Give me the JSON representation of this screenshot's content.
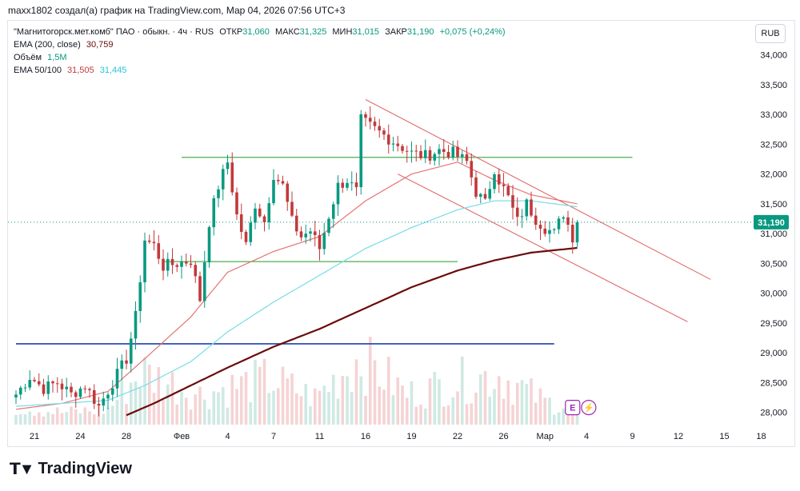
{
  "header": "maxx1802 создал(а) график на TradingView.com, Мар 04, 2026 07:56 UTC+3",
  "legend": {
    "symbol": "\"Магнитогорск.мет.комб\" ПАО · обыкн. · 4ч · RUS",
    "open_label": "ОТКР",
    "open": "31,060",
    "high_label": "МАКС",
    "high": "31,325",
    "low_label": "МИН",
    "low": "31,015",
    "close_label": "ЗАКР",
    "close": "31,190",
    "change": "+0,075 (+0,24%)",
    "ema200_label": "EMA (200, close)",
    "ema200_value": "30,759",
    "volume_label": "Объём",
    "volume_value": "1,5M",
    "ema50100_label": "EMA 50/100",
    "ema50_value": "31,505",
    "ema100_value": "31,445"
  },
  "currency_button": "RUB",
  "brand": "TradingView",
  "colors": {
    "up": "#089981",
    "down": "#c2393b",
    "ema50": "#e57373",
    "ema100": "#80deea",
    "ema200": "#6a0b0b",
    "hline_green": "#4caf50",
    "hline_blue": "#1e40af",
    "channel": "#e06b6b",
    "price_tag": "#089981",
    "volume_up": "#cfe9e3",
    "volume_down": "#f5d3d4"
  },
  "chart_data": {
    "type": "candlestick",
    "ylim": [
      27.9,
      34.25
    ],
    "xlim": [
      0,
      163
    ],
    "y_ticks": [
      {
        "v": 34.0,
        "label": "34,000"
      },
      {
        "v": 33.5,
        "label": "33,500"
      },
      {
        "v": 33.0,
        "label": "33,000"
      },
      {
        "v": 32.5,
        "label": "32,500"
      },
      {
        "v": 32.0,
        "label": "32,000"
      },
      {
        "v": 31.5,
        "label": "31,500"
      },
      {
        "v": 31.0,
        "label": "31,000"
      },
      {
        "v": 30.5,
        "label": "30,500"
      },
      {
        "v": 30.0,
        "label": "30,000"
      },
      {
        "v": 29.5,
        "label": "29,500"
      },
      {
        "v": 29.0,
        "label": "29,000"
      },
      {
        "v": 28.5,
        "label": "28,500"
      },
      {
        "v": 28.0,
        "label": "28,000"
      }
    ],
    "x_ticks": [
      {
        "b": 4,
        "label": "21"
      },
      {
        "b": 14,
        "label": "24"
      },
      {
        "b": 24,
        "label": "28"
      },
      {
        "b": 36,
        "label": "Фев"
      },
      {
        "b": 46,
        "label": "4"
      },
      {
        "b": 56,
        "label": "7"
      },
      {
        "b": 66,
        "label": "11"
      },
      {
        "b": 76,
        "label": "16"
      },
      {
        "b": 86,
        "label": "19"
      },
      {
        "b": 96,
        "label": "22"
      },
      {
        "b": 106,
        "label": "26"
      },
      {
        "b": 115,
        "label": "Мар"
      },
      {
        "b": 124,
        "label": "4"
      },
      {
        "b": 134,
        "label": "9"
      },
      {
        "b": 144,
        "label": "12"
      },
      {
        "b": 154,
        "label": "15"
      },
      {
        "b": 162,
        "label": "18"
      }
    ],
    "last_price": 31.19,
    "last_price_label": "31,190",
    "close_anchors": [
      [
        0,
        28.3
      ],
      [
        3,
        28.6
      ],
      [
        6,
        28.4
      ],
      [
        9,
        28.5
      ],
      [
        12,
        28.3
      ],
      [
        15,
        28.45
      ],
      [
        18,
        28.1
      ],
      [
        21,
        28.5
      ],
      [
        24,
        28.9
      ],
      [
        26,
        29.6
      ],
      [
        28,
        30.9
      ],
      [
        30,
        30.8
      ],
      [
        32,
        30.45
      ],
      [
        35,
        30.5
      ],
      [
        38,
        30.55
      ],
      [
        40,
        29.9
      ],
      [
        42,
        31.2
      ],
      [
        44,
        31.8
      ],
      [
        46,
        32.2
      ],
      [
        48,
        31.3
      ],
      [
        50,
        30.8
      ],
      [
        52,
        31.5
      ],
      [
        54,
        31.2
      ],
      [
        56,
        32.0
      ],
      [
        58,
        31.8
      ],
      [
        60,
        31.2
      ],
      [
        62,
        30.95
      ],
      [
        64,
        31.05
      ],
      [
        66,
        30.75
      ],
      [
        68,
        31.3
      ],
      [
        70,
        31.8
      ],
      [
        72,
        31.9
      ],
      [
        74,
        31.7
      ],
      [
        75,
        32.9
      ],
      [
        77,
        32.8
      ],
      [
        80,
        32.65
      ],
      [
        83,
        32.5
      ],
      [
        86,
        32.35
      ],
      [
        89,
        32.3
      ],
      [
        92,
        32.4
      ],
      [
        95,
        32.35
      ],
      [
        98,
        32.2
      ],
      [
        100,
        31.7
      ],
      [
        102,
        31.5
      ],
      [
        104,
        32.1
      ],
      [
        105,
        31.9
      ],
      [
        107,
        31.6
      ],
      [
        109,
        31.2
      ],
      [
        111,
        31.5
      ],
      [
        113,
        31.25
      ],
      [
        115,
        31.1
      ],
      [
        117,
        31.0
      ],
      [
        119,
        31.35
      ],
      [
        121,
        30.95
      ],
      [
        122,
        31.19
      ]
    ],
    "volume_anchors": [
      [
        0,
        0.12
      ],
      [
        10,
        0.08
      ],
      [
        20,
        0.1
      ],
      [
        27,
        0.35
      ],
      [
        40,
        0.2
      ],
      [
        47,
        0.25
      ],
      [
        55,
        0.3
      ],
      [
        65,
        0.18
      ],
      [
        75,
        0.45
      ],
      [
        85,
        0.2
      ],
      [
        95,
        0.28
      ],
      [
        105,
        0.33
      ],
      [
        115,
        0.15
      ],
      [
        122,
        0.12
      ]
    ],
    "series": [
      {
        "name": "EMA 50",
        "points": [
          [
            0,
            28.05
          ],
          [
            10,
            28.15
          ],
          [
            20,
            28.35
          ],
          [
            28,
            28.9
          ],
          [
            38,
            29.6
          ],
          [
            46,
            30.35
          ],
          [
            56,
            30.7
          ],
          [
            66,
            30.95
          ],
          [
            76,
            31.55
          ],
          [
            86,
            32.0
          ],
          [
            96,
            32.2
          ],
          [
            104,
            31.9
          ],
          [
            112,
            31.65
          ],
          [
            122,
            31.5
          ]
        ]
      },
      {
        "name": "EMA 100",
        "points": [
          [
            0,
            28.1
          ],
          [
            10,
            28.15
          ],
          [
            20,
            28.2
          ],
          [
            28,
            28.45
          ],
          [
            38,
            28.85
          ],
          [
            46,
            29.35
          ],
          [
            56,
            29.85
          ],
          [
            66,
            30.3
          ],
          [
            76,
            30.75
          ],
          [
            86,
            31.1
          ],
          [
            96,
            31.4
          ],
          [
            104,
            31.55
          ],
          [
            112,
            31.55
          ],
          [
            122,
            31.45
          ]
        ]
      },
      {
        "name": "EMA 200",
        "points": [
          [
            24,
            27.95
          ],
          [
            30,
            28.15
          ],
          [
            38,
            28.45
          ],
          [
            46,
            28.75
          ],
          [
            56,
            29.1
          ],
          [
            66,
            29.4
          ],
          [
            76,
            29.75
          ],
          [
            86,
            30.1
          ],
          [
            96,
            30.38
          ],
          [
            104,
            30.55
          ],
          [
            112,
            30.68
          ],
          [
            122,
            30.76
          ]
        ]
      }
    ],
    "hlines": [
      {
        "name": "resistance",
        "y": 32.28,
        "x0": 36,
        "x1": 134,
        "color": "green"
      },
      {
        "name": "support",
        "y": 30.53,
        "x0": 32,
        "x1": 96,
        "color": "green"
      },
      {
        "name": "level-29.15",
        "y": 29.15,
        "x0": 0,
        "x1": 117,
        "color": "blue"
      }
    ],
    "channel_lines": [
      {
        "name": "channel-upper",
        "points": [
          [
            76,
            33.25
          ],
          [
            151,
            30.23
          ]
        ]
      },
      {
        "name": "channel-lower",
        "points": [
          [
            83,
            32.0
          ],
          [
            146,
            29.52
          ]
        ]
      }
    ],
    "event_badges": [
      {
        "name": "earnings-badge",
        "b": 121,
        "y": 28.08,
        "label": "E"
      },
      {
        "name": "dividend-badge",
        "b": 124.5,
        "y": 28.08,
        "label": "⚡"
      }
    ]
  }
}
